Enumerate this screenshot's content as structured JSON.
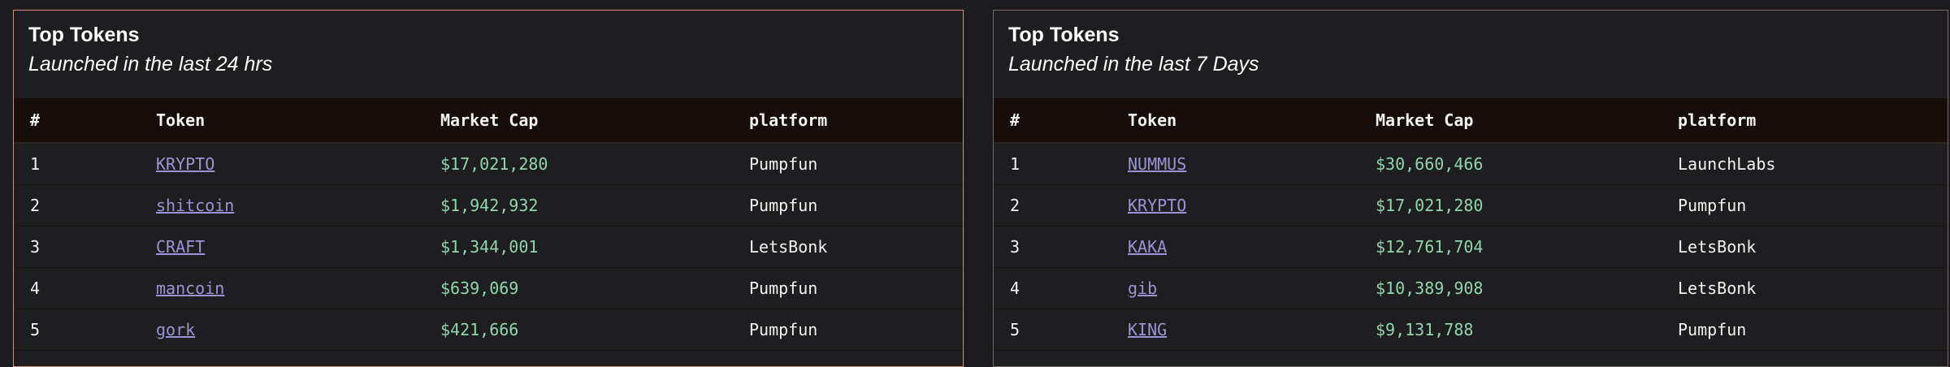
{
  "panels": [
    {
      "title": "Top Tokens",
      "subtitle": "Launched in the last 24 hrs",
      "columns": [
        "#",
        "Token",
        "Market Cap",
        "platform"
      ],
      "rows": [
        {
          "rank": "1",
          "token": "KRYPTO",
          "market_cap": "$17,021,280",
          "platform": "Pumpfun"
        },
        {
          "rank": "2",
          "token": "shitcoin",
          "market_cap": "$1,942,932",
          "platform": "Pumpfun"
        },
        {
          "rank": "3",
          "token": "CRAFT",
          "market_cap": "$1,344,001",
          "platform": "LetsBonk"
        },
        {
          "rank": "4",
          "token": "mancoin",
          "market_cap": "$639,069",
          "platform": "Pumpfun"
        },
        {
          "rank": "5",
          "token": "gork",
          "market_cap": "$421,666",
          "platform": "Pumpfun"
        }
      ]
    },
    {
      "title": "Top Tokens",
      "subtitle": "Launched in the last 7 Days",
      "columns": [
        "#",
        "Token",
        "Market Cap",
        "platform"
      ],
      "rows": [
        {
          "rank": "1",
          "token": "NUMMUS",
          "market_cap": "$30,660,466",
          "platform": "LaunchLabs"
        },
        {
          "rank": "2",
          "token": "KRYPTO",
          "market_cap": "$17,021,280",
          "platform": "Pumpfun"
        },
        {
          "rank": "3",
          "token": "KAKA",
          "market_cap": "$12,761,704",
          "platform": "LetsBonk"
        },
        {
          "rank": "4",
          "token": "gib",
          "market_cap": "$10,389,908",
          "platform": "LetsBonk"
        },
        {
          "rank": "5",
          "token": "KING",
          "market_cap": "$9,131,788",
          "platform": "Pumpfun"
        }
      ]
    }
  ],
  "colors": {
    "market_cap": "#8fd6aa",
    "link": "#9a93d6",
    "active_border": "#d98f78"
  }
}
